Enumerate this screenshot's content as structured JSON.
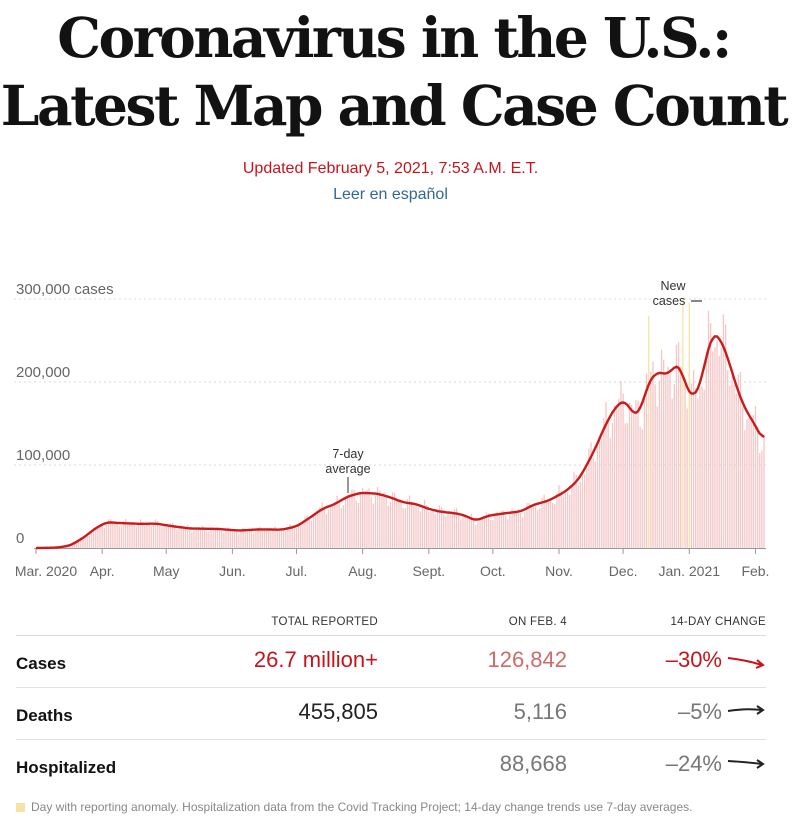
{
  "header": {
    "title_line1": "Coronavirus in the U.S.:",
    "title_line2": "Latest Map and Case Count",
    "updated": "Updated February 5, 2021, 7:53 A.M. E.T.",
    "spanish_link": "Leer en español"
  },
  "chart_data": {
    "type": "bar",
    "title": "",
    "xlabel": "",
    "ylabel": "",
    "y_ticks": [
      {
        "value": 0,
        "label": "0"
      },
      {
        "value": 100000,
        "label": "100,000"
      },
      {
        "value": 200000,
        "label": "200,000"
      },
      {
        "value": 300000,
        "label": "300,000 cases"
      }
    ],
    "ylim": [
      0,
      300000
    ],
    "x_ticks": [
      {
        "day": 0,
        "label": "Mar. 2020"
      },
      {
        "day": 31,
        "label": "Apr."
      },
      {
        "day": 61,
        "label": "May"
      },
      {
        "day": 92,
        "label": "Jun."
      },
      {
        "day": 122,
        "label": "Jul."
      },
      {
        "day": 153,
        "label": "Aug."
      },
      {
        "day": 184,
        "label": "Sept."
      },
      {
        "day": 214,
        "label": "Oct."
      },
      {
        "day": 245,
        "label": "Nov."
      },
      {
        "day": 275,
        "label": "Dec."
      },
      {
        "day": 306,
        "label": "Jan. 2021"
      },
      {
        "day": 337,
        "label": "Feb."
      }
    ],
    "x_domain": [
      0,
      341
    ],
    "average_knots": [
      [
        0,
        0
      ],
      [
        10,
        500
      ],
      [
        16,
        3000
      ],
      [
        22,
        12000
      ],
      [
        28,
        24000
      ],
      [
        33,
        31000
      ],
      [
        40,
        30000
      ],
      [
        50,
        29000
      ],
      [
        56,
        29500
      ],
      [
        62,
        27000
      ],
      [
        72,
        23500
      ],
      [
        85,
        23000
      ],
      [
        95,
        21000
      ],
      [
        105,
        22500
      ],
      [
        115,
        22000
      ],
      [
        122,
        26000
      ],
      [
        128,
        36000
      ],
      [
        134,
        47000
      ],
      [
        140,
        53000
      ],
      [
        146,
        62000
      ],
      [
        152,
        66500
      ],
      [
        160,
        65500
      ],
      [
        166,
        61000
      ],
      [
        172,
        55000
      ],
      [
        178,
        53000
      ],
      [
        184,
        47000
      ],
      [
        190,
        43500
      ],
      [
        196,
        42000
      ],
      [
        200,
        40000
      ],
      [
        206,
        33000
      ],
      [
        212,
        39000
      ],
      [
        220,
        42000
      ],
      [
        227,
        44000
      ],
      [
        233,
        52000
      ],
      [
        240,
        57000
      ],
      [
        248,
        68000
      ],
      [
        254,
        82000
      ],
      [
        258,
        100000
      ],
      [
        262,
        120000
      ],
      [
        267,
        150000
      ],
      [
        272,
        172000
      ],
      [
        276,
        178000
      ],
      [
        280,
        160000
      ],
      [
        283,
        165000
      ],
      [
        287,
        200000
      ],
      [
        290,
        210000
      ],
      [
        293,
        212000
      ],
      [
        296,
        208000
      ],
      [
        299,
        220000
      ],
      [
        302,
        218000
      ],
      [
        305,
        190000
      ],
      [
        308,
        182000
      ],
      [
        311,
        195000
      ],
      [
        314,
        232000
      ],
      [
        317,
        258000
      ],
      [
        320,
        255000
      ],
      [
        324,
        230000
      ],
      [
        328,
        195000
      ],
      [
        332,
        168000
      ],
      [
        336,
        152000
      ],
      [
        340,
        132000
      ]
    ],
    "daily_jitter": 0.12,
    "anomaly_days": [
      287,
      303,
      306
    ],
    "annotations": {
      "average_line1": "7-day",
      "average_line2": "average",
      "new_cases_line1": "New",
      "new_cases_line2": "cases"
    },
    "colors": {
      "bars": "#f4c7c7",
      "anomaly": "#f7e2a6",
      "line": "#cc1a1a",
      "grid": "#d9d9d9",
      "axis_label": "#666666"
    }
  },
  "table": {
    "headers": {
      "total": "TOTAL REPORTED",
      "day": "ON FEB. 4",
      "change": "14-DAY CHANGE"
    },
    "rows": [
      {
        "label": "Cases",
        "total": "26.7 million+",
        "day": "126,842",
        "change": "–30%"
      },
      {
        "label": "Deaths",
        "total": "455,805",
        "day": "5,116",
        "change": "–5%"
      },
      {
        "label": "Hospitalized",
        "total": "",
        "day": "88,668",
        "change": "–24%"
      }
    ]
  },
  "footnote": "Day with reporting anomaly. Hospitalization data from the Covid Tracking Project; 14-day change trends use 7-day averages."
}
